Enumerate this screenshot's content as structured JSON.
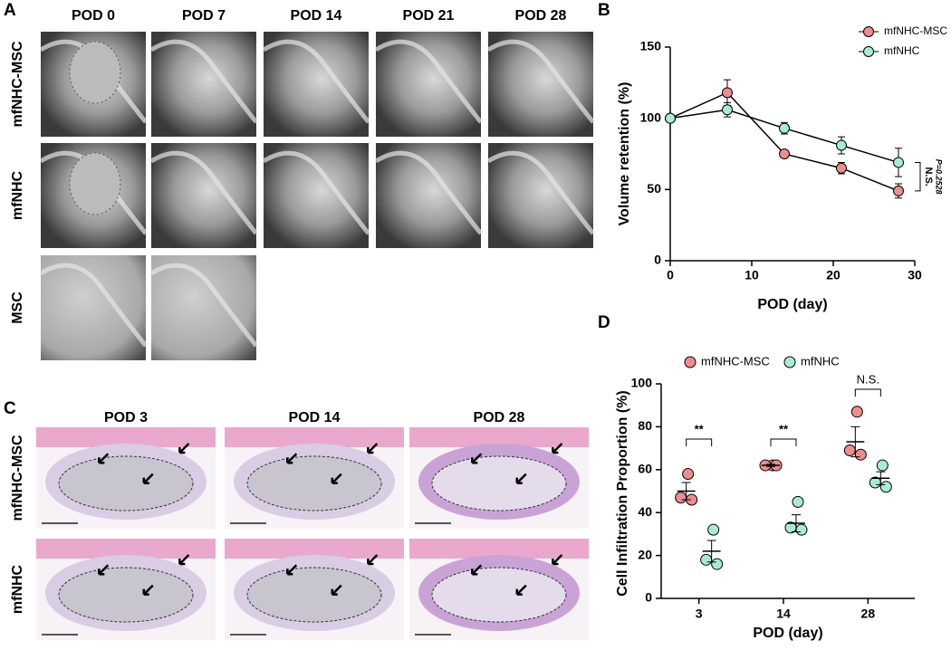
{
  "figure": {
    "panel_labels": [
      "A",
      "B",
      "C",
      "D"
    ],
    "mri": {
      "columns": [
        "POD 0",
        "POD 7",
        "POD 14",
        "POD 21",
        "POD 28"
      ],
      "rows": [
        "mfNHC-MSC",
        "mfNHC",
        "MSC"
      ]
    },
    "histology": {
      "columns": [
        "POD 3",
        "POD 14",
        "POD 28"
      ],
      "rows": [
        "mfNHC-MSC",
        "mfNHC"
      ]
    }
  },
  "chart_data": [
    {
      "type": "line",
      "xlabel": "POD (day)",
      "ylabel": "Volume retention (%)",
      "x": [
        0,
        7,
        14,
        21,
        28
      ],
      "series": [
        {
          "name": "mfNHC-MSC",
          "color": "#f08c8c",
          "values": [
            100,
            118,
            75,
            65,
            49
          ],
          "errors": [
            0,
            9,
            2,
            4,
            5
          ]
        },
        {
          "name": "mfNHC",
          "color": "#a6ecd4",
          "values": [
            100,
            106,
            93,
            81,
            69
          ],
          "errors": [
            0,
            5,
            4,
            6,
            10
          ]
        }
      ],
      "xlim": [
        0,
        30
      ],
      "ylim": [
        0,
        150
      ],
      "xticks": [
        0,
        10,
        20,
        30
      ],
      "yticks": [
        0,
        50,
        100,
        150
      ],
      "annotations": [
        "N.S.",
        "P=0.2528"
      ],
      "legend": "upper right"
    },
    {
      "type": "dot",
      "xlabel": "POD (day)",
      "ylabel": "Cell Infiltration Proportion (%)",
      "categories": [
        "3",
        "14",
        "28"
      ],
      "series": [
        {
          "name": "mfNHC-MSC",
          "color": "#f08c8c",
          "values": [
            [
              58,
              47,
              46
            ],
            [
              62,
              62,
              62
            ],
            [
              87,
              69,
              67
            ]
          ],
          "means": [
            50,
            62,
            73
          ],
          "errors": [
            4,
            0.5,
            7
          ]
        },
        {
          "name": "mfNHC",
          "color": "#a6ecd4",
          "values": [
            [
              32,
              18,
              16
            ],
            [
              45,
              33,
              32
            ],
            [
              62,
              54,
              52
            ]
          ],
          "means": [
            22,
            35,
            56
          ],
          "errors": [
            5,
            4,
            3
          ]
        }
      ],
      "ylim": [
        0,
        100
      ],
      "yticks": [
        0,
        20,
        40,
        60,
        80,
        100
      ],
      "annotations": [
        {
          "text": "**",
          "category": 0
        },
        {
          "text": "**",
          "category": 1
        },
        {
          "text": "N.S.",
          "category": 2
        }
      ],
      "legend": "top"
    }
  ]
}
